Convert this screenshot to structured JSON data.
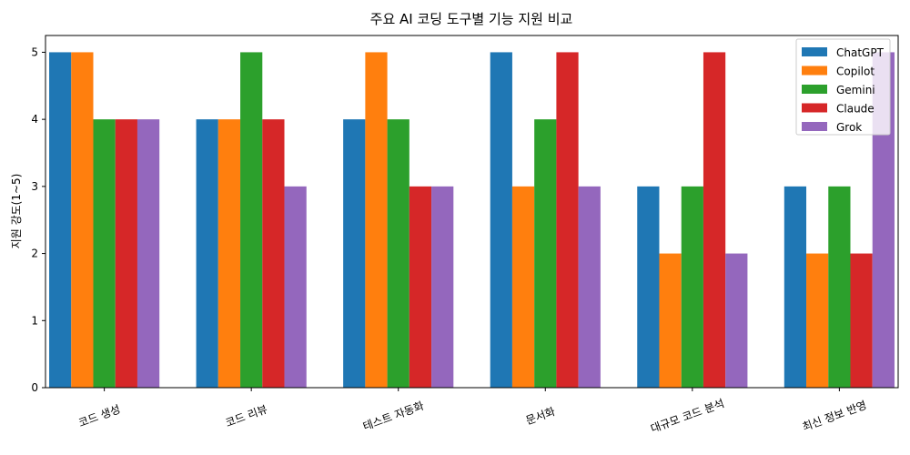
{
  "chart_data": {
    "type": "bar",
    "title": "주요 AI 코딩 도구별 기능 지원 비교",
    "xlabel": "",
    "ylabel": "지원 강도(1~5)",
    "ylim": [
      0,
      5.25
    ],
    "yticks": [
      0,
      1,
      2,
      3,
      4,
      5
    ],
    "grid": false,
    "legend_position": "top-right",
    "categories": [
      "코드 생성",
      "코드 리뷰",
      "테스트 자동화",
      "문서화",
      "대규모 코드 분석",
      "최신 정보 반영"
    ],
    "series": [
      {
        "name": "ChatGPT",
        "color": "#1f77b4",
        "values": [
          5,
          4,
          4,
          5,
          3,
          3
        ]
      },
      {
        "name": "Copilot",
        "color": "#ff7f0e",
        "values": [
          5,
          4,
          5,
          3,
          2,
          2
        ]
      },
      {
        "name": "Gemini",
        "color": "#2ca02c",
        "values": [
          4,
          5,
          4,
          4,
          3,
          3
        ]
      },
      {
        "name": "Claude",
        "color": "#d62728",
        "values": [
          4,
          4,
          3,
          5,
          5,
          2
        ]
      },
      {
        "name": "Grok",
        "color": "#9467bd",
        "values": [
          4,
          3,
          3,
          3,
          2,
          5
        ]
      }
    ]
  }
}
